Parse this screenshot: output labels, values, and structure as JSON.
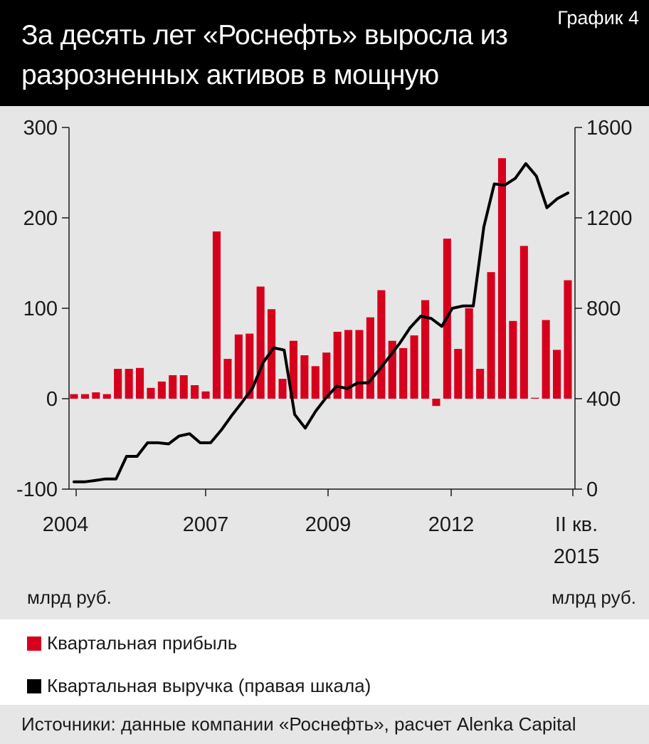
{
  "header": {
    "title": "За десять лет «Роснефть» выросла из разрозненных активов в мощную компанию",
    "graph_label": "График 4"
  },
  "units": {
    "left": "млрд руб.",
    "right": "млрд руб."
  },
  "legend": {
    "profit": "Квартальная прибыль",
    "revenue": "Квартальная выручка (правая шкала)"
  },
  "source": "Источники: данные компании «Роснефть», расчет Alenka Capital",
  "colors": {
    "profit": "#d6001c",
    "revenue": "#000000",
    "background": "#e6e6e6",
    "header": "#000000"
  },
  "chart_data": {
    "type": "bar+line",
    "x_tick_labels": [
      "2004",
      "2007",
      "2009",
      "2012",
      "II кв.",
      "2015"
    ],
    "left_axis": {
      "ylim": [
        -100,
        300
      ],
      "ticks": [
        -100,
        0,
        100,
        200,
        300
      ]
    },
    "right_axis": {
      "ylim": [
        0,
        1600
      ],
      "ticks": [
        0,
        400,
        800,
        1200,
        1600
      ]
    },
    "grid": false,
    "series": [
      {
        "name": "Квартальная прибыль",
        "type": "bar",
        "axis": "left",
        "values": [
          5,
          5,
          7,
          5,
          33,
          33,
          34,
          12,
          19,
          26,
          26,
          15,
          8,
          185,
          44,
          71,
          72,
          124,
          99,
          22,
          64,
          48,
          36,
          51,
          74,
          76,
          76,
          90,
          120,
          64,
          56,
          70,
          109,
          -8,
          177,
          55,
          100,
          33,
          140,
          266,
          86,
          169,
          1,
          87,
          54,
          131
        ]
      },
      {
        "name": "Квартальная выручка (правая шкала)",
        "type": "line",
        "axis": "right",
        "values": [
          32,
          32,
          38,
          45,
          45,
          145,
          145,
          205,
          205,
          200,
          235,
          245,
          205,
          205,
          260,
          325,
          385,
          448,
          560,
          625,
          615,
          330,
          270,
          345,
          405,
          455,
          445,
          470,
          470,
          525,
          585,
          645,
          715,
          765,
          755,
          720,
          800,
          810,
          810,
          1160,
          1350,
          1345,
          1375,
          1440,
          1385,
          1245,
          1285,
          1310
        ]
      }
    ]
  }
}
